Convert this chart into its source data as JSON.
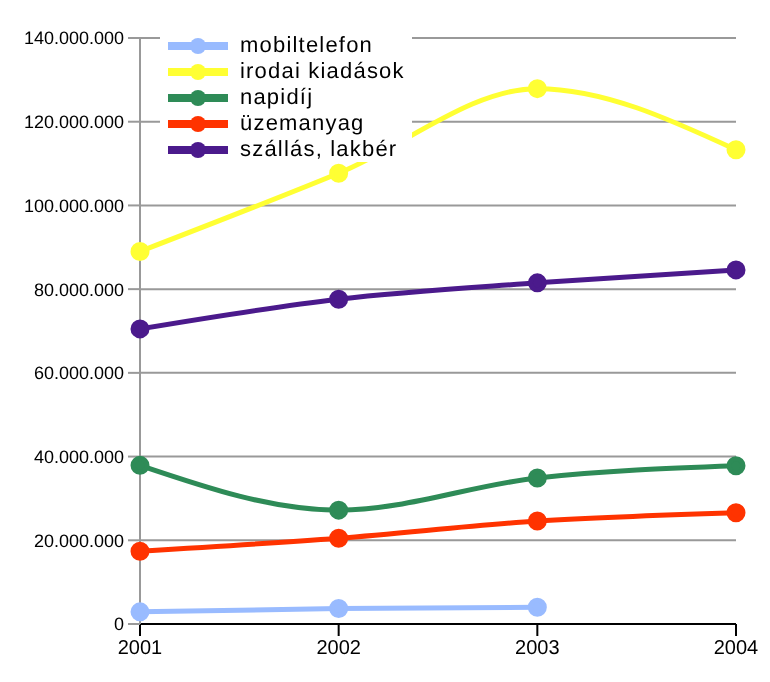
{
  "chart_data": {
    "type": "line",
    "categories": [
      "2001",
      "2002",
      "2003",
      "2004"
    ],
    "series": [
      {
        "name": "mobiltelefon",
        "color": "#99bbff",
        "values": [
          2900000,
          3700000,
          4000000,
          null
        ]
      },
      {
        "name": "irodai kiadások",
        "color": "#ffff33",
        "values": [
          89000000,
          107700000,
          127900000,
          113300000
        ]
      },
      {
        "name": "napidíj",
        "color": "#2e8b57",
        "values": [
          37900000,
          27200000,
          34900000,
          37800000
        ]
      },
      {
        "name": "üzemanyag",
        "color": "#ff3300",
        "values": [
          17400000,
          20500000,
          24600000,
          26600000
        ]
      },
      {
        "name": "szállás, lakbér",
        "color": "#4b1a8c",
        "values": [
          70500000,
          77600000,
          81500000,
          84600000
        ]
      }
    ],
    "ylim": [
      0,
      140000000
    ],
    "yticks": [
      {
        "value": 0,
        "label": "0"
      },
      {
        "value": 20000000,
        "label": "20.000.000"
      },
      {
        "value": 40000000,
        "label": "40.000.000"
      },
      {
        "value": 60000000,
        "label": "60.000.000"
      },
      {
        "value": 80000000,
        "label": "80.000.000"
      },
      {
        "value": 100000000,
        "label": "100.000.000"
      },
      {
        "value": 120000000,
        "label": "120.000.000"
      },
      {
        "value": 140000000,
        "label": "140.000.000"
      }
    ],
    "grid": "y",
    "legend": "top left",
    "marker": "circle",
    "line_style": "solid"
  }
}
